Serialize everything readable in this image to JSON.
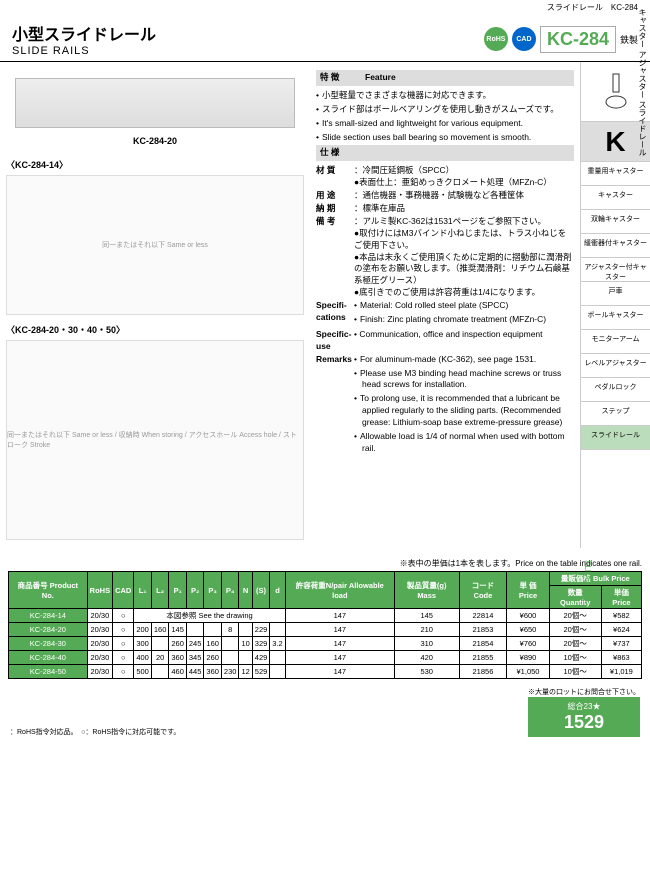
{
  "breadcrumb": "スライドレール　KC-284",
  "vert_cat": "キャスター アジャスター スライドレール",
  "vert_slide": "SLIDE RAIL",
  "title_jp": "小型スライドレール",
  "title_en": "SLIDE RAILS",
  "badges": {
    "rohs": "RoHS",
    "cad": "CAD"
  },
  "part_code": "KC-284",
  "part_sub": "鉄製",
  "img_label": "KC-284-20",
  "diagram1_label": "〈KC-284-14〉",
  "diagram1_note": "同一またはそれ以下\nSame or less",
  "diagram2_label": "〈KC-284-20・30・40・50〉",
  "diagram2_notes": "同一またはそれ以下 Same or less / 収納時 When storing / アクセスホール Access hole / ストローク Stroke",
  "feature_head_jp": "特 徴",
  "feature_head_en": "Feature",
  "features_jp": [
    "小型軽量でさまざまな機器に対応できます。",
    "スライド部はボールベアリングを使用し動きがスムーズです。"
  ],
  "features_en": [
    "It's small-sized and lightweight for various equipment.",
    "Slide section uses ball bearing so movement is smooth."
  ],
  "spec_head": "仕 様",
  "specs_jp": [
    {
      "label": "材 質",
      "body": "：冷間圧延鋼板（SPCC）\n●表面仕上：亜鉛めっきクロメート処理（MFZn-C）"
    },
    {
      "label": "用 途",
      "body": "：通信機器・事務機器・試験機など各種筐体"
    },
    {
      "label": "納 期",
      "body": "：標準在庫品"
    },
    {
      "label": "備 考",
      "body": "：アルミ製KC-362は1531ページをご参照下さい。\n●取付けにはM3バインド小ねじまたは、トラス小ねじをご使用下さい。\n●本品は末永くご使用頂くために定期的に摺動部に潤滑剤の塗布をお願い致します。（推奨潤滑剤：リチウム石鹸基系極圧グリース）\n●底引きでのご使用は許容荷重は1/4になります。"
    }
  ],
  "spec_en_label1": "Specifi-cations",
  "spec_en_body1": [
    "Material: Cold rolled steel plate (SPCC)",
    "Finish: Zinc plating chromate treatment (MFZn-C)"
  ],
  "spec_en_label2": "Specific-use",
  "spec_en_body2": "Communication, office and inspection equipment",
  "remarks_label": "Remarks",
  "remarks": [
    "For aluminum-made (KC-362), see page 1531.",
    "Please use M3 binding head machine screws or truss head screws for installation.",
    "To prolong use, it is recommended that a lubricant be applied regularly to the sliding parts. (Recommended grease: Lithium-soap base extreme-pressure grease)",
    "Allowable load is 1/4 of normal when used with bottom rail."
  ],
  "sidebar_k": "K",
  "sidebar_items": [
    "重量用キャスター",
    "キャスター",
    "双輪キャスター",
    "緩衝器付キャスター",
    "アジャスター付キャスター",
    "戸車",
    "ボールキャスター",
    "モニターアーム",
    "レベルアジャスター",
    "ペダルロック",
    "ステップ"
  ],
  "sidebar_active": "スライドレール",
  "table_note": "※表中の単価は1本を表します。Price on the table indicates one rail.",
  "table_headers": {
    "product": "商品番号\nProduct No.",
    "rohs": "RoHS",
    "cad": "CAD",
    "l1": "L₁",
    "l2": "L₂",
    "p1": "P₁",
    "p2": "P₂",
    "p3": "P₃",
    "p4": "P₄",
    "n": "N",
    "s": "(S)",
    "d": "d",
    "load": "許容荷重N/pair\nAllowable load",
    "mass": "製品質量(g)\nMass",
    "code": "コード\nCode",
    "price": "単 価\nPrice",
    "bulk": "量販価格 Bulk Price",
    "qty": "数量 Quantity",
    "bprice": "単価 Price"
  },
  "rows": [
    {
      "pn": "KC-284-14",
      "r": "20/30",
      "c": "○",
      "l1": "本図参照 See the drawing",
      "l2": "",
      "p1": "",
      "p2": "",
      "p3": "",
      "p4": "",
      "n": "",
      "s": "",
      "d": "",
      "load": "147",
      "mass": "145",
      "code": "22814",
      "price": "¥600",
      "qty": "20個～",
      "bp": "¥582"
    },
    {
      "pn": "KC-284-20",
      "r": "20/30",
      "c": "○",
      "l1": "200",
      "l2": "160",
      "p1": "145",
      "p2": "",
      "p3": "",
      "p4": "8",
      "n": "",
      "s": "229",
      "d": "",
      "load": "147",
      "mass": "210",
      "code": "21853",
      "price": "¥650",
      "qty": "20個～",
      "bp": "¥624"
    },
    {
      "pn": "KC-284-30",
      "r": "20/30",
      "c": "○",
      "l1": "300",
      "l2": "",
      "p1": "260",
      "p2": "245",
      "p3": "160",
      "p4": "",
      "n": "10",
      "s": "329",
      "d": "3.2",
      "load": "147",
      "mass": "310",
      "code": "21854",
      "price": "¥760",
      "qty": "20個～",
      "bp": "¥737"
    },
    {
      "pn": "KC-284-40",
      "r": "20/30",
      "c": "○",
      "l1": "400",
      "l2": "20",
      "p1": "360",
      "p2": "345",
      "p3": "260",
      "p4": "",
      "n": "",
      "s": "429",
      "d": "",
      "load": "147",
      "mass": "420",
      "code": "21855",
      "price": "¥890",
      "qty": "10個～",
      "bp": "¥863"
    },
    {
      "pn": "KC-284-50",
      "r": "20/30",
      "c": "○",
      "l1": "500",
      "l2": "",
      "p1": "460",
      "p2": "445",
      "p3": "360",
      "p4": "230",
      "n": "12",
      "s": "529",
      "d": "",
      "load": "147",
      "mass": "530",
      "code": "21856",
      "price": "¥1,050",
      "qty": "10個～",
      "bp": "¥1,019"
    }
  ],
  "footer_note1": "：RoHS指令対応品。　○：RoHS指令に対応可能です。",
  "footer_note2": "※大量の口ットにお問合せ下さい。",
  "page_label": "総合23★",
  "page_num": "1529",
  "colors": {
    "accent": "#5a5",
    "header_bg": "#ddd"
  }
}
